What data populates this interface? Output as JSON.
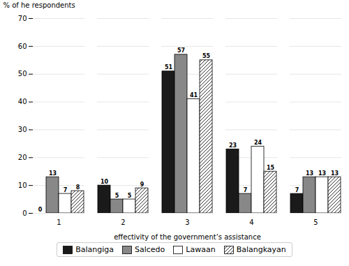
{
  "chart_data": {
    "type": "bar",
    "xlabel": "effectivity of the government’s assistance",
    "ylabel": "% of he respondents",
    "categories": [
      1,
      2,
      3,
      4,
      5
    ],
    "series": [
      {
        "name": "Balangiga",
        "color": "#1a1a1a",
        "values": [
          0,
          10,
          51,
          23,
          7
        ]
      },
      {
        "name": "Salcedo",
        "color": "#888888",
        "values": [
          13,
          5,
          57,
          7,
          13
        ]
      },
      {
        "name": "Lawaan",
        "color": "#ffffff",
        "values": [
          7,
          5,
          41,
          24,
          13
        ]
      },
      {
        "name": "Balangkayan",
        "color": "#ffffff",
        "values": [
          8,
          9,
          55,
          15,
          13
        ]
      }
    ],
    "ylim": [
      0,
      70
    ],
    "yticks": [
      0,
      10,
      20,
      30,
      40,
      50,
      60,
      70
    ],
    "grid": true,
    "legend": "bottom",
    "data_labels": true
  }
}
